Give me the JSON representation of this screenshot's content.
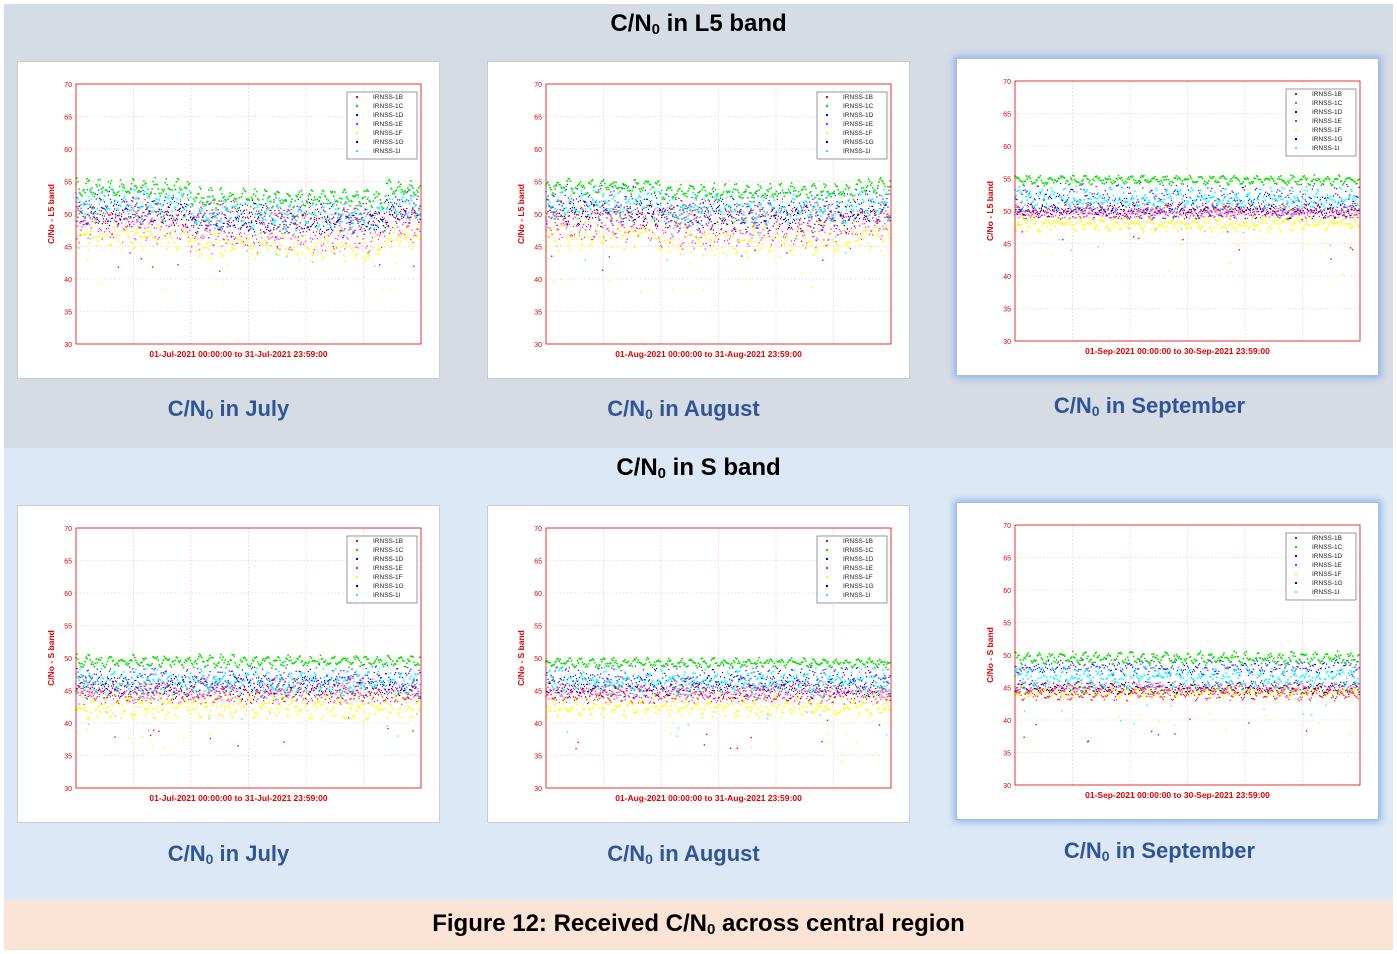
{
  "bands": [
    {
      "title_main": "C/N",
      "title_sub": "0",
      "title_rest": " in L5 band"
    },
    {
      "title_main": "C/N",
      "title_sub": "0",
      "title_rest": " in S band"
    }
  ],
  "captions": [
    {
      "main": "C/N",
      "sub": "0",
      "rest": " in July"
    },
    {
      "main": "C/N",
      "sub": "0",
      "rest": " in August"
    },
    {
      "main": "C/N",
      "sub": "0",
      "rest": " in September"
    },
    {
      "main": "C/N",
      "sub": "0",
      "rest": " in July"
    },
    {
      "main": "C/N",
      "sub": "0",
      "rest": " in August"
    },
    {
      "main": "C/N",
      "sub": "0",
      "rest": " in September"
    }
  ],
  "footer": {
    "main": "Figure 12: Received C/N",
    "sub": "0",
    "rest": " across central region"
  },
  "chart_data": [
    {
      "type": "scatter",
      "band": "L5",
      "ylabel": "C/No - L5 band",
      "xlabel": "01-Jul-2021 00:00:00   to   31-Jul-2021 23:59:00",
      "ylim": [
        30,
        70
      ],
      "yticks": [
        30,
        35,
        40,
        45,
        50,
        55,
        60,
        65,
        70
      ],
      "x_range_days": [
        0,
        31
      ],
      "grid": true,
      "legend_position": "top-right",
      "series": [
        {
          "name": "IRNSS-1B",
          "color": "#ff0000",
          "band": [
            48,
            52
          ],
          "osc": 2.5,
          "drop": 0
        },
        {
          "name": "IRNSS-1C",
          "color": "#00e000",
          "band": [
            52.5,
            55.5
          ],
          "osc": 1.5,
          "drop": 1.5
        },
        {
          "name": "IRNSS-1D",
          "color": "#0000ff",
          "band": [
            49,
            53.5
          ],
          "osc": 3,
          "drop": 1.5
        },
        {
          "name": "IRNSS-1E",
          "color": "#ff00ff",
          "band": [
            46,
            50
          ],
          "osc": 3,
          "drop": 1.5
        },
        {
          "name": "IRNSS-1F",
          "color": "#ffff00",
          "band": [
            45,
            48.5
          ],
          "osc": 3,
          "drop": 1.5
        },
        {
          "name": "IRNSS-1G",
          "color": "#000080",
          "band": [
            48,
            52
          ],
          "osc": 2,
          "drop": 1.5
        },
        {
          "name": "IRNSS-1I",
          "color": "#00ffff",
          "band": [
            49,
            54
          ],
          "osc": 2.5,
          "drop": 1.5
        }
      ]
    },
    {
      "type": "scatter",
      "band": "L5",
      "ylabel": "C/No - L5 band",
      "xlabel": "01-Aug-2021 00:00:00   to   31-Aug-2021 23:59:00",
      "ylim": [
        30,
        70
      ],
      "yticks": [
        30,
        35,
        40,
        45,
        50,
        55,
        60,
        65,
        70
      ],
      "x_range_days": [
        0,
        31
      ],
      "grid": true,
      "legend_position": "top-right",
      "series": [
        {
          "name": "IRNSS-1B",
          "color": "#ff0000",
          "band": [
            48,
            52
          ],
          "osc": 2.5,
          "drop": 0
        },
        {
          "name": "IRNSS-1C",
          "color": "#00e000",
          "band": [
            53,
            55.5
          ],
          "osc": 1.2,
          "drop": 0.8
        },
        {
          "name": "IRNSS-1D",
          "color": "#0000ff",
          "band": [
            49.5,
            54
          ],
          "osc": 3,
          "drop": 0.8
        },
        {
          "name": "IRNSS-1E",
          "color": "#ff00ff",
          "band": [
            46,
            50
          ],
          "osc": 3,
          "drop": 0.8
        },
        {
          "name": "IRNSS-1F",
          "color": "#ffff00",
          "band": [
            45,
            49
          ],
          "osc": 3.5,
          "drop": 0.8
        },
        {
          "name": "IRNSS-1G",
          "color": "#000080",
          "band": [
            48,
            52
          ],
          "osc": 2,
          "drop": 0.8
        },
        {
          "name": "IRNSS-1I",
          "color": "#00ffff",
          "band": [
            49,
            54
          ],
          "osc": 2.5,
          "drop": 0.8
        }
      ]
    },
    {
      "type": "scatter",
      "band": "L5",
      "ylabel": "C/No - L5 band",
      "xlabel": "01-Sep-2021 00:00:00   to   30-Sep-2021 23:59:00",
      "ylim": [
        30,
        70
      ],
      "yticks": [
        30,
        35,
        40,
        45,
        50,
        55,
        60,
        65,
        70
      ],
      "x_range_days": [
        0,
        30
      ],
      "grid": true,
      "legend_position": "top-right",
      "series": [
        {
          "name": "IRNSS-1B",
          "color": "#ff0000",
          "band": [
            49,
            51
          ],
          "osc": 1.5,
          "drop": 0
        },
        {
          "name": "IRNSS-1C",
          "color": "#00e000",
          "band": [
            54,
            55.5
          ],
          "osc": 0.8,
          "drop": 0
        },
        {
          "name": "IRNSS-1D",
          "color": "#0000ff",
          "band": [
            50,
            54
          ],
          "osc": 2.5,
          "drop": 0
        },
        {
          "name": "IRNSS-1E",
          "color": "#ff00ff",
          "band": [
            49,
            50.5
          ],
          "osc": 1,
          "drop": 0
        },
        {
          "name": "IRNSS-1F",
          "color": "#ffff00",
          "band": [
            47,
            49
          ],
          "osc": 1.5,
          "drop": 0
        },
        {
          "name": "IRNSS-1G",
          "color": "#000080",
          "band": [
            49,
            51
          ],
          "osc": 1.5,
          "drop": 0
        },
        {
          "name": "IRNSS-1I",
          "color": "#00ffff",
          "band": [
            50,
            53.5
          ],
          "osc": 2,
          "drop": 0
        }
      ]
    },
    {
      "type": "scatter",
      "band": "S",
      "ylabel": "C/No - S band",
      "xlabel": "01-Jul-2021 00:00:00   to   31-Jul-2021 23:59:00",
      "ylim": [
        30,
        70
      ],
      "yticks": [
        30,
        35,
        40,
        45,
        50,
        55,
        60,
        65,
        70
      ],
      "x_range_days": [
        0,
        31
      ],
      "grid": true,
      "legend_position": "top-right",
      "series": [
        {
          "name": "IRNSS-1B",
          "color": "#ff0000",
          "band": [
            43,
            46
          ],
          "osc": 1.5,
          "drop": 0
        },
        {
          "name": "IRNSS-1C",
          "color": "#00e000",
          "band": [
            48.5,
            50.5
          ],
          "osc": 1,
          "drop": 0
        },
        {
          "name": "IRNSS-1D",
          "color": "#0000ff",
          "band": [
            45,
            48.5
          ],
          "osc": 2.5,
          "drop": 0
        },
        {
          "name": "IRNSS-1E",
          "color": "#ff00ff",
          "band": [
            43.5,
            46.5
          ],
          "osc": 2.5,
          "drop": 0
        },
        {
          "name": "IRNSS-1F",
          "color": "#ffff00",
          "band": [
            41,
            44
          ],
          "osc": 2.5,
          "drop": 0
        },
        {
          "name": "IRNSS-1G",
          "color": "#000080",
          "band": [
            44,
            47
          ],
          "osc": 2,
          "drop": 0
        },
        {
          "name": "IRNSS-1I",
          "color": "#00ffff",
          "band": [
            44.5,
            48
          ],
          "osc": 2.5,
          "drop": 0
        }
      ]
    },
    {
      "type": "scatter",
      "band": "S",
      "ylabel": "C/No - S band",
      "xlabel": "01-Aug-2021 00:00:00   to   31-Aug-2021 23:59:00",
      "ylim": [
        30,
        70
      ],
      "yticks": [
        30,
        35,
        40,
        45,
        50,
        55,
        60,
        65,
        70
      ],
      "x_range_days": [
        0,
        31
      ],
      "grid": true,
      "legend_position": "top-right",
      "series": [
        {
          "name": "IRNSS-1B",
          "color": "#ff0000",
          "band": [
            43,
            46
          ],
          "osc": 1.5,
          "drop": 0
        },
        {
          "name": "IRNSS-1C",
          "color": "#00e000",
          "band": [
            48.5,
            50
          ],
          "osc": 0.8,
          "drop": 0
        },
        {
          "name": "IRNSS-1D",
          "color": "#0000ff",
          "band": [
            45,
            48.5
          ],
          "osc": 2.5,
          "drop": 0
        },
        {
          "name": "IRNSS-1E",
          "color": "#ff00ff",
          "band": [
            43.5,
            46
          ],
          "osc": 2,
          "drop": 0
        },
        {
          "name": "IRNSS-1F",
          "color": "#ffff00",
          "band": [
            41,
            44
          ],
          "osc": 2,
          "drop": 0
        },
        {
          "name": "IRNSS-1G",
          "color": "#000080",
          "band": [
            44,
            47
          ],
          "osc": 2,
          "drop": 0
        },
        {
          "name": "IRNSS-1I",
          "color": "#00ffff",
          "band": [
            44.5,
            48
          ],
          "osc": 2.5,
          "drop": 0
        }
      ]
    },
    {
      "type": "scatter",
      "band": "S",
      "ylabel": "C/No - S band",
      "xlabel": "01-Sep-2021 00:00:00   to   30-Sep-2021 23:59:00",
      "ylim": [
        30,
        70
      ],
      "yticks": [
        30,
        35,
        40,
        45,
        50,
        55,
        60,
        65,
        70
      ],
      "x_range_days": [
        0,
        30
      ],
      "grid": true,
      "legend_position": "top-right",
      "series": [
        {
          "name": "IRNSS-1B",
          "color": "#ff0000",
          "band": [
            43,
            45
          ],
          "osc": 1,
          "drop": 0
        },
        {
          "name": "IRNSS-1C",
          "color": "#00e000",
          "band": [
            48.5,
            50.5
          ],
          "osc": 1,
          "drop": 0
        },
        {
          "name": "IRNSS-1D",
          "color": "#0000ff",
          "band": [
            47,
            49
          ],
          "osc": 1.5,
          "drop": 0
        },
        {
          "name": "IRNSS-1E",
          "color": "#ff00ff",
          "band": [
            44,
            46
          ],
          "osc": 1,
          "drop": 0
        },
        {
          "name": "IRNSS-1F",
          "color": "#ffff00",
          "band": [
            43.5,
            45.5
          ],
          "osc": 1,
          "drop": 0
        },
        {
          "name": "IRNSS-1G",
          "color": "#000080",
          "band": [
            44,
            46
          ],
          "osc": 1,
          "drop": 0
        },
        {
          "name": "IRNSS-1I",
          "color": "#00ffff",
          "band": [
            45,
            48
          ],
          "osc": 2,
          "drop": 0
        }
      ]
    }
  ]
}
